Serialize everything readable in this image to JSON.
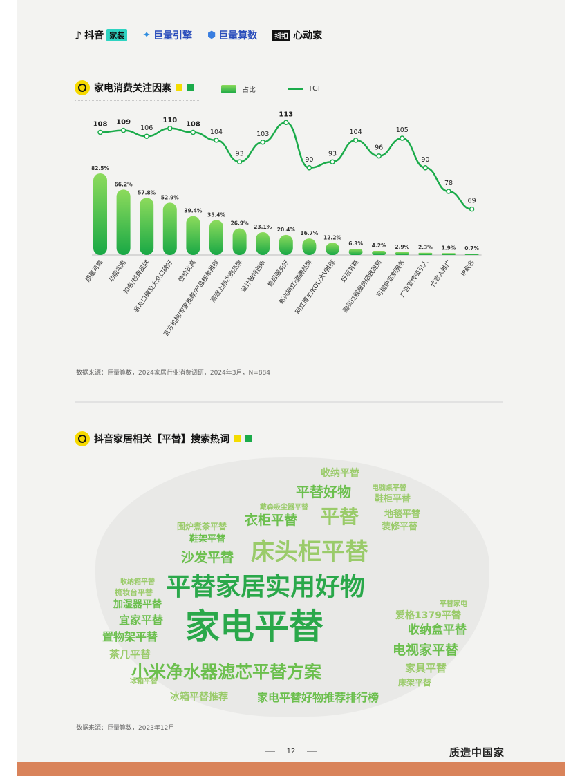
{
  "header": {
    "logos": [
      {
        "icon": "tiktok-icon",
        "text": "抖音",
        "tag": "家装"
      },
      {
        "icon": "julianglink-icon",
        "text": "巨量引擎"
      },
      {
        "icon": "julianglsuanshu-icon",
        "text": "巨量算数"
      },
      {
        "box": "抖扣",
        "text": "心动家"
      }
    ]
  },
  "section1": {
    "title": "家电消费关注因素",
    "legend_bar": "占比",
    "legend_line": "TGI",
    "source": "数据来源：巨量算数，2024家居行业消费调研，2024年3月，N=884"
  },
  "section2": {
    "title": "抖音家居相关【平替】搜索热词",
    "source": "数据来源：巨量算数，2023年12月"
  },
  "chart_data": {
    "type": "bar",
    "categories": [
      "质量可靠",
      "功能实用",
      "知名/经典品牌",
      "亲友口碑及大众口碑好",
      "性价比高",
      "官方机构/专家推荐/产品榜单推荐",
      "高端上档次的品牌",
      "设计独特创新",
      "售后服务好",
      "新兴网红/潮牌品牌",
      "网红博主/KOL/大V推荐",
      "好玩有趣",
      "购买过程服务细致周到",
      "可提供定制服务",
      "广告宣传吸引人",
      "代言人推广",
      "IP联名"
    ],
    "series": [
      {
        "name": "占比",
        "type": "bar",
        "values": [
          82.5,
          66.2,
          57.8,
          52.9,
          39.4,
          35.4,
          26.9,
          23.1,
          20.4,
          16.7,
          12.2,
          6.3,
          4.2,
          2.9,
          2.3,
          1.9,
          0.7
        ],
        "labels": [
          "82.5%",
          "66.2%",
          "57.8%",
          "52.9%",
          "39.4%",
          "35.4%",
          "26.9%",
          "23.1%",
          "20.4%",
          "16.7%",
          "12.2%",
          "6.3%",
          "4.2%",
          "2.9%",
          "2.3%",
          "1.9%",
          "0.7%"
        ]
      },
      {
        "name": "TGI",
        "type": "line",
        "values": [
          108,
          109,
          106,
          110,
          108,
          104,
          93,
          103,
          113,
          90,
          93,
          104,
          96,
          105,
          90,
          78,
          69
        ]
      }
    ],
    "bold_tgi_indices": [
      0,
      1,
      3,
      4,
      8
    ],
    "colors": {
      "bar_top": "#8ddb5c",
      "bar_bottom": "#18a845",
      "line": "#1aab4a"
    }
  },
  "wordcloud": [
    {
      "text": "家电平替",
      "size": 50,
      "tone": "dg",
      "x": 140,
      "y": 220
    },
    {
      "text": "平替家居实用好物",
      "size": 36,
      "tone": "dg",
      "x": 112,
      "y": 170
    },
    {
      "text": "床头柜平替",
      "size": 34,
      "tone": "lg",
      "x": 235,
      "y": 120
    },
    {
      "text": "小米净水器滤芯平替方案",
      "size": 25,
      "tone": "mg",
      "x": 62,
      "y": 298
    },
    {
      "text": "平替",
      "size": 28,
      "tone": "lg",
      "x": 335,
      "y": 72
    },
    {
      "text": "衣柜平替",
      "size": 19,
      "tone": "mg",
      "x": 226,
      "y": 82
    },
    {
      "text": "平替好物",
      "size": 20,
      "tone": "mg",
      "x": 300,
      "y": 40
    },
    {
      "text": "沙发平替",
      "size": 19,
      "tone": "mg",
      "x": 134,
      "y": 136
    },
    {
      "text": "电视家平替",
      "size": 19,
      "tone": "mg",
      "x": 440,
      "y": 270
    },
    {
      "text": "收纳盒平替",
      "size": 17,
      "tone": "mg",
      "x": 462,
      "y": 242
    },
    {
      "text": "家电平替好物推荐排行榜",
      "size": 16,
      "tone": "mg",
      "x": 244,
      "y": 340
    },
    {
      "text": "冰箱平替推荐",
      "size": 14,
      "tone": "lg",
      "x": 118,
      "y": 340
    },
    {
      "text": "家具平替",
      "size": 15,
      "tone": "lg",
      "x": 458,
      "y": 298
    },
    {
      "text": "爱格1379平替",
      "size": 14,
      "tone": "lg",
      "x": 444,
      "y": 222
    },
    {
      "text": "置物架平替",
      "size": 16,
      "tone": "mg",
      "x": 20,
      "y": 252
    },
    {
      "text": "茶几平替",
      "size": 15,
      "tone": "lg",
      "x": 30,
      "y": 278
    },
    {
      "text": "宜家平替",
      "size": 16,
      "tone": "mg",
      "x": 44,
      "y": 228
    },
    {
      "text": "加湿器平替",
      "size": 14,
      "tone": "mg",
      "x": 36,
      "y": 206
    },
    {
      "text": "收纳平替",
      "size": 14,
      "tone": "lg",
      "x": 336,
      "y": 16
    },
    {
      "text": "鞋柜平替",
      "size": 13,
      "tone": "lg",
      "x": 414,
      "y": 54
    },
    {
      "text": "地毯平替",
      "size": 13,
      "tone": "lg",
      "x": 428,
      "y": 76
    },
    {
      "text": "装修平替",
      "size": 13,
      "tone": "lg",
      "x": 424,
      "y": 94
    },
    {
      "text": "鞋架平替",
      "size": 13,
      "tone": "mg",
      "x": 146,
      "y": 112
    },
    {
      "text": "围炉煮茶平替",
      "size": 12,
      "tone": "lg",
      "x": 128,
      "y": 94
    },
    {
      "text": "床架平替",
      "size": 12,
      "tone": "lg",
      "x": 448,
      "y": 320
    },
    {
      "text": "梳妆台平替",
      "size": 11,
      "tone": "lg",
      "x": 38,
      "y": 190
    },
    {
      "text": "收纳箱平替",
      "size": 10,
      "tone": "lg",
      "x": 46,
      "y": 176
    },
    {
      "text": "平替家电",
      "size": 10,
      "tone": "lg",
      "x": 508,
      "y": 208
    },
    {
      "text": "戴森吸尘器平替",
      "size": 10,
      "tone": "lg",
      "x": 248,
      "y": 68
    },
    {
      "text": "电脑桌平替",
      "size": 10,
      "tone": "lg",
      "x": 410,
      "y": 40
    },
    {
      "text": "冰箱平替",
      "size": 10,
      "tone": "lg",
      "x": 60,
      "y": 320
    }
  ],
  "footer": {
    "page": "12",
    "brand": "质造中国家"
  }
}
